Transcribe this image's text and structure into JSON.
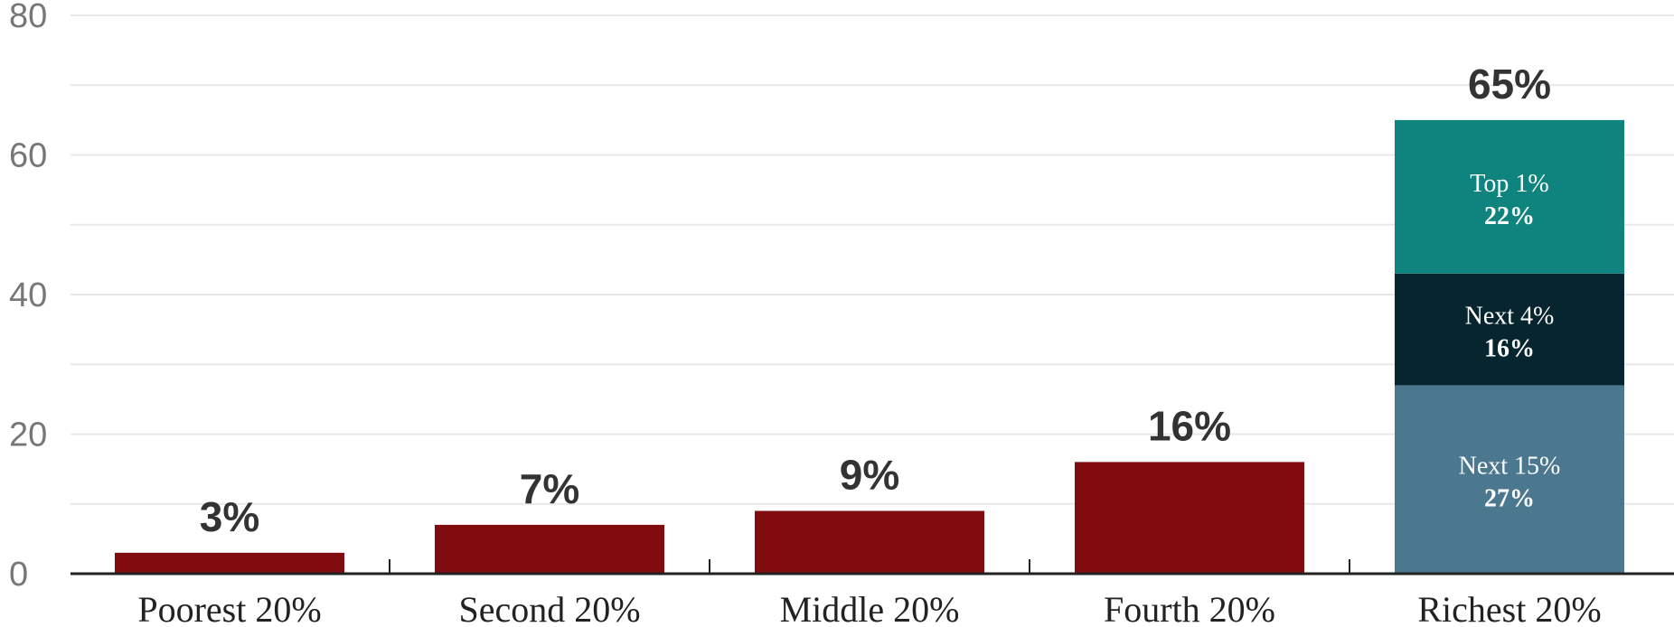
{
  "chart_data": {
    "type": "bar",
    "title": "",
    "xlabel": "",
    "ylabel": "",
    "ylim": [
      0,
      80
    ],
    "yticks": [
      0,
      20,
      40,
      60,
      80
    ],
    "grid": true,
    "categories": [
      "Poorest 20%",
      "Second 20%",
      "Middle 20%",
      "Fourth 20%",
      "Richest 20%"
    ],
    "values": [
      3,
      7,
      9,
      16,
      65
    ],
    "value_labels": [
      "3%",
      "7%",
      "9%",
      "16%",
      "65%"
    ],
    "stacked_breakdown": {
      "category": "Richest 20%",
      "segments": [
        {
          "name": "Next 15%",
          "value": 27,
          "label": "27%"
        },
        {
          "name": "Next 4%",
          "value": 16,
          "label": "16%"
        },
        {
          "name": "Top 1%",
          "value": 22,
          "label": "22%"
        }
      ]
    },
    "colors": {
      "bar": "#800c10",
      "next15": "#4b788f",
      "next4": "#06252f",
      "top1": "#0f837e"
    }
  }
}
